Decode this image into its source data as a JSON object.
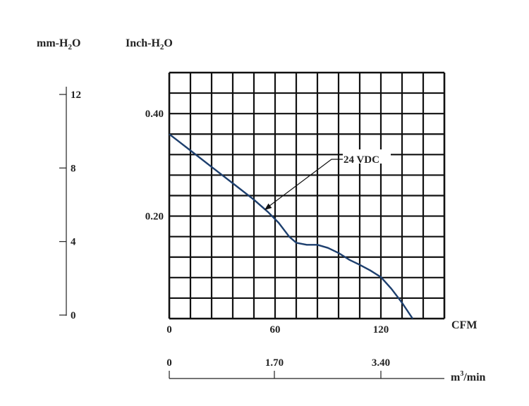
{
  "chart_data": {
    "type": "line",
    "title": "",
    "axes": {
      "mmh2o": {
        "label_main": "mm-H",
        "label_sub": "2",
        "label_tail": "O",
        "ticks": [
          "0",
          "4",
          "8",
          "12"
        ],
        "values": [
          0,
          4,
          8,
          12
        ]
      },
      "inchh2o": {
        "label_main": "Inch-H",
        "label_sub": "2",
        "label_tail": "O",
        "ticks": [
          "0.20",
          "0.40"
        ],
        "values": [
          0.2,
          0.4
        ],
        "ylim": [
          0,
          0.48
        ]
      },
      "cfm": {
        "label": "CFM",
        "ticks": [
          "0",
          "60",
          "120"
        ],
        "values": [
          0,
          60,
          120
        ],
        "xlim": [
          0,
          156
        ]
      },
      "m3min": {
        "label_main": "m",
        "label_sup": "3",
        "label_tail": "/min",
        "ticks": [
          "0",
          "1.70",
          "3.40"
        ],
        "values": [
          0,
          1.7,
          3.4
        ]
      }
    },
    "grid": true,
    "series": [
      {
        "name": "24 VDC",
        "color": "#1d3f6e",
        "x": [
          0,
          12,
          24,
          36,
          48,
          56,
          62,
          68,
          72,
          78,
          84,
          90,
          96,
          102,
          108,
          114,
          120,
          126,
          132,
          138
        ],
        "y": [
          0.36,
          0.328,
          0.296,
          0.264,
          0.232,
          0.208,
          0.187,
          0.16,
          0.148,
          0.144,
          0.144,
          0.138,
          0.128,
          0.115,
          0.105,
          0.094,
          0.081,
          0.058,
          0.031,
          0.0
        ]
      }
    ],
    "annotation": {
      "text": "24 VDC",
      "target_series": 0,
      "target_x": 54,
      "target_y": 0.212
    }
  }
}
